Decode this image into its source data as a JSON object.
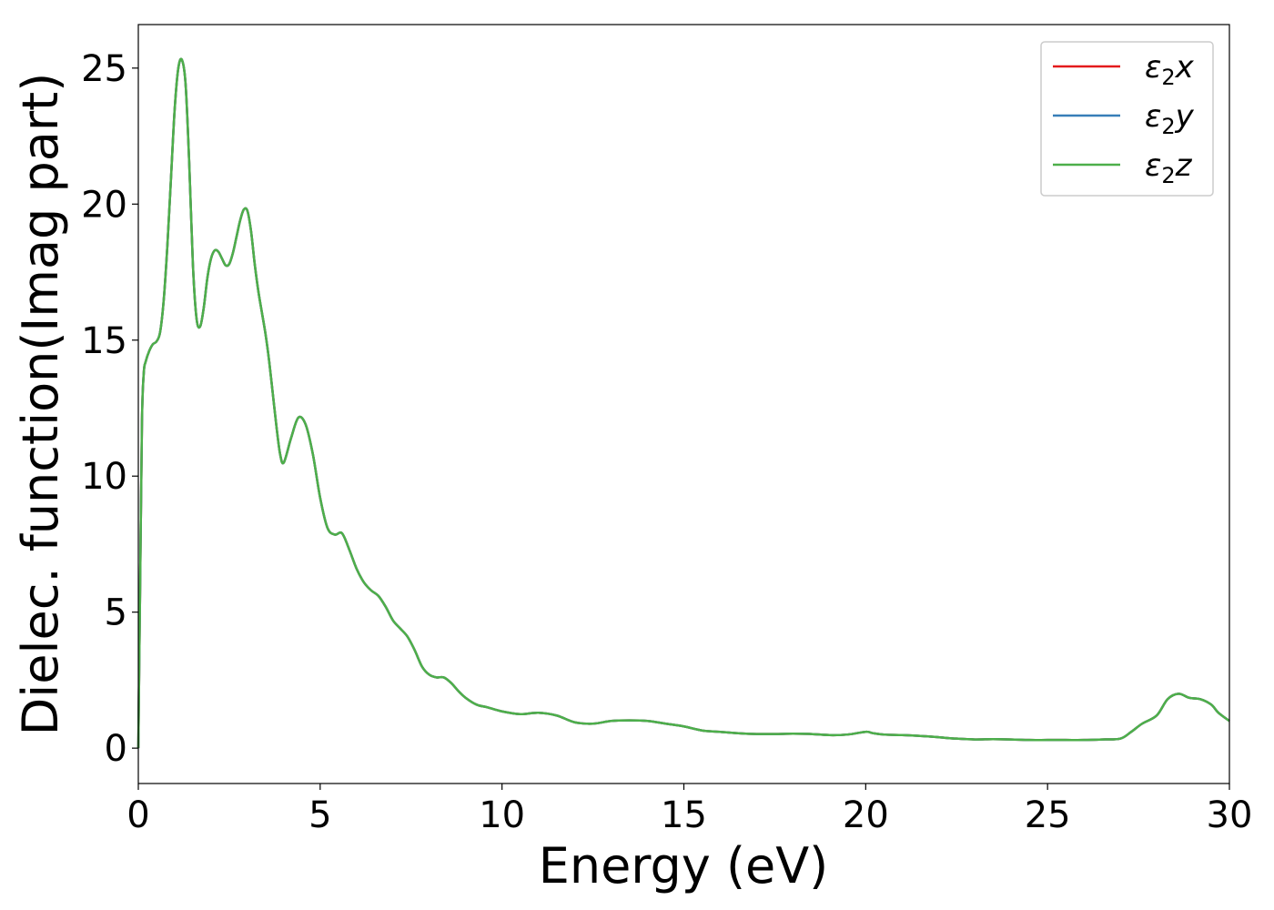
{
  "chart_data": {
    "type": "line",
    "xlabel": "Energy (eV)",
    "ylabel": "Dielec. function(Imag part)",
    "xlim": [
      0,
      30
    ],
    "ylim": [
      -1.3,
      26.6
    ],
    "xticks": [
      0,
      5,
      10,
      15,
      20,
      25,
      30
    ],
    "yticks": [
      0,
      5,
      10,
      15,
      20,
      25
    ],
    "grid": false,
    "legend_position": "top-right",
    "series": [
      {
        "name": "ε2x",
        "legend": {
          "base": "ε",
          "sub": "2",
          "suffix": "x"
        },
        "color": "#e41a1c",
        "x": [
          0,
          0.05,
          0.1,
          0.15,
          0.2,
          0.3,
          0.4,
          0.5,
          0.6,
          0.7,
          0.8,
          0.9,
          1.0,
          1.1,
          1.2,
          1.3,
          1.4,
          1.5,
          1.6,
          1.7,
          1.8,
          1.9,
          2.0,
          2.1,
          2.2,
          2.3,
          2.4,
          2.5,
          2.6,
          2.7,
          2.8,
          2.9,
          3.0,
          3.1,
          3.2,
          3.3,
          3.4,
          3.5,
          3.6,
          3.7,
          3.8,
          3.9,
          4.0,
          4.2,
          4.4,
          4.6,
          4.8,
          5.0,
          5.2,
          5.4,
          5.6,
          5.8,
          6.0,
          6.2,
          6.4,
          6.6,
          6.8,
          7.0,
          7.2,
          7.4,
          7.6,
          7.8,
          8.0,
          8.2,
          8.4,
          8.6,
          8.8,
          9.0,
          9.3,
          9.6,
          10.0,
          10.5,
          11.0,
          11.5,
          12.0,
          12.5,
          13.0,
          13.5,
          14.0,
          14.5,
          15.0,
          15.5,
          16.0,
          16.5,
          17.0,
          17.5,
          18.0,
          18.5,
          19.0,
          19.5,
          20.0,
          20.2,
          20.5,
          21.0,
          21.5,
          22.0,
          22.5,
          23.0,
          23.5,
          24.0,
          24.5,
          25.0,
          25.5,
          26.0,
          26.5,
          27.0,
          27.3,
          27.6,
          28.0,
          28.3,
          28.6,
          28.9,
          29.2,
          29.5,
          29.7,
          30.0
        ],
        "y": [
          0,
          6.0,
          12.0,
          13.8,
          14.2,
          14.6,
          14.85,
          14.95,
          15.3,
          16.5,
          18.5,
          21.0,
          23.5,
          25.0,
          25.3,
          24.4,
          21.5,
          17.8,
          15.8,
          15.5,
          16.2,
          17.3,
          18.0,
          18.3,
          18.25,
          18.0,
          17.75,
          17.8,
          18.2,
          18.8,
          19.4,
          19.8,
          19.75,
          19.0,
          17.8,
          16.8,
          16.0,
          15.2,
          14.2,
          13.0,
          11.8,
          10.8,
          10.5,
          11.4,
          12.15,
          11.9,
          10.8,
          9.2,
          8.1,
          7.85,
          7.9,
          7.3,
          6.6,
          6.1,
          5.8,
          5.6,
          5.2,
          4.7,
          4.4,
          4.1,
          3.6,
          3.0,
          2.7,
          2.6,
          2.6,
          2.4,
          2.1,
          1.85,
          1.6,
          1.5,
          1.35,
          1.25,
          1.3,
          1.2,
          0.95,
          0.9,
          1.0,
          1.02,
          1.0,
          0.9,
          0.8,
          0.65,
          0.6,
          0.55,
          0.52,
          0.52,
          0.53,
          0.52,
          0.48,
          0.5,
          0.6,
          0.55,
          0.5,
          0.48,
          0.45,
          0.4,
          0.35,
          0.32,
          0.33,
          0.32,
          0.3,
          0.3,
          0.3,
          0.3,
          0.32,
          0.35,
          0.6,
          0.9,
          1.2,
          1.8,
          2.0,
          1.85,
          1.8,
          1.6,
          1.3,
          1.0
        ]
      },
      {
        "name": "ε2y",
        "legend": {
          "base": "ε",
          "sub": "2",
          "suffix": "y"
        },
        "color": "#377eb8",
        "same_as": "ε2x"
      },
      {
        "name": "ε2z",
        "legend": {
          "base": "ε",
          "sub": "2",
          "suffix": "z"
        },
        "color": "#4daf4a",
        "same_as": "ε2x"
      }
    ]
  }
}
